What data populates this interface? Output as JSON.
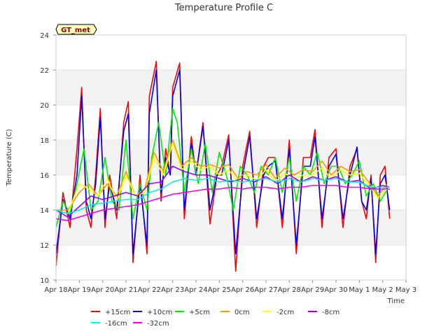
{
  "chart_data": {
    "type": "line",
    "title": "Temperature Profile C",
    "xlabel": "Time",
    "ylabel": "Temperature (C)",
    "ylim": [
      10,
      24
    ],
    "yticks": [
      10,
      12,
      14,
      16,
      18,
      20,
      22,
      24
    ],
    "xlim": [
      0,
      15
    ],
    "xticks": [
      {
        "pos": 0,
        "label": "Apr 18"
      },
      {
        "pos": 1,
        "label": "Apr 19"
      },
      {
        "pos": 2,
        "label": "Apr 20"
      },
      {
        "pos": 3,
        "label": "Apr 21"
      },
      {
        "pos": 4,
        "label": "Apr 22"
      },
      {
        "pos": 5,
        "label": "Apr 23"
      },
      {
        "pos": 6,
        "label": "Apr 24"
      },
      {
        "pos": 7,
        "label": "Apr 25"
      },
      {
        "pos": 8,
        "label": "Apr 26"
      },
      {
        "pos": 9,
        "label": "Apr 27"
      },
      {
        "pos": 10,
        "label": "Apr 28"
      },
      {
        "pos": 11,
        "label": "Apr 29"
      },
      {
        "pos": 12,
        "label": "Apr 30"
      },
      {
        "pos": 13,
        "label": "May 1"
      },
      {
        "pos": 14,
        "label": "May 2"
      },
      {
        "pos": 15,
        "label": "May 3"
      }
    ],
    "annotation": "GT_met",
    "grid": "horizontal-bands",
    "legend_position": "bottom",
    "series": [
      {
        "name": "+15cm",
        "color": "#ff0000",
        "x": [
          0,
          0.3,
          0.6,
          0.9,
          1.1,
          1.3,
          1.5,
          1.7,
          1.9,
          2.1,
          2.3,
          2.6,
          2.9,
          3.1,
          3.3,
          3.6,
          3.9,
          4.0,
          4.3,
          4.5,
          4.7,
          4.9,
          5.0,
          5.3,
          5.5,
          5.8,
          6.0,
          6.3,
          6.6,
          6.9,
          7.1,
          7.4,
          7.7,
          8.0,
          8.3,
          8.6,
          8.9,
          9.1,
          9.4,
          9.7,
          10.0,
          10.3,
          10.6,
          10.9,
          11.1,
          11.4,
          11.7,
          12.0,
          12.3,
          12.6,
          12.9,
          13.1,
          13.3,
          13.5,
          13.7,
          13.9,
          14.1,
          14.3
        ],
        "y": [
          10.8,
          15.0,
          13.0,
          17.5,
          21.0,
          14.0,
          13.0,
          16.0,
          19.8,
          13.0,
          16.0,
          13.5,
          19.0,
          20.2,
          11.0,
          16.0,
          11.5,
          20.5,
          22.5,
          14.5,
          17.5,
          16.0,
          21.0,
          22.4,
          13.5,
          18.2,
          16.0,
          19.0,
          13.2,
          16.0,
          16.5,
          18.3,
          10.5,
          16.5,
          18.5,
          13.0,
          16.5,
          17.0,
          17.0,
          13.0,
          18.0,
          11.5,
          17.0,
          17.0,
          18.6,
          13.0,
          17.0,
          17.5,
          13.0,
          16.5,
          17.5,
          14.5,
          13.5,
          16.0,
          11.0,
          16.0,
          16.5,
          13.5
        ]
      },
      {
        "name": "+10cm",
        "color": "#0000ff",
        "x": [
          0,
          0.3,
          0.6,
          0.9,
          1.1,
          1.3,
          1.5,
          1.7,
          1.9,
          2.1,
          2.3,
          2.6,
          2.9,
          3.1,
          3.3,
          3.6,
          3.9,
          4.0,
          4.3,
          4.5,
          4.7,
          4.9,
          5.0,
          5.3,
          5.5,
          5.8,
          6.0,
          6.3,
          6.6,
          6.9,
          7.1,
          7.4,
          7.7,
          8.0,
          8.3,
          8.6,
          8.9,
          9.1,
          9.4,
          9.7,
          10.0,
          10.3,
          10.6,
          10.9,
          11.1,
          11.4,
          11.7,
          12.0,
          12.3,
          12.6,
          12.9,
          13.1,
          13.3,
          13.5,
          13.7,
          13.9,
          14.1,
          14.3
        ],
        "y": [
          11.5,
          14.6,
          13.5,
          16.0,
          20.5,
          14.5,
          13.5,
          15.5,
          19.3,
          13.5,
          15.5,
          14.0,
          18.5,
          19.5,
          11.5,
          15.5,
          12.0,
          19.5,
          22.0,
          15.0,
          17.0,
          16.0,
          20.5,
          22.0,
          14.0,
          17.8,
          16.0,
          18.8,
          14.0,
          16.0,
          16.0,
          18.0,
          11.5,
          16.0,
          18.2,
          13.5,
          16.0,
          16.5,
          16.8,
          13.5,
          17.5,
          12.0,
          16.5,
          16.5,
          18.2,
          13.5,
          16.5,
          17.2,
          13.5,
          16.0,
          17.6,
          14.5,
          14.0,
          15.8,
          11.5,
          15.5,
          16.0,
          14.0
        ]
      },
      {
        "name": "+5cm",
        "color": "#00ee00",
        "x": [
          0,
          0.3,
          0.6,
          0.9,
          1.2,
          1.5,
          1.8,
          2.1,
          2.4,
          2.7,
          3.0,
          3.3,
          3.6,
          3.9,
          4.1,
          4.4,
          4.7,
          5.0,
          5.2,
          5.5,
          5.8,
          6.1,
          6.4,
          6.7,
          7.0,
          7.3,
          7.6,
          7.9,
          8.2,
          8.5,
          8.8,
          9.1,
          9.4,
          9.7,
          10.0,
          10.3,
          10.6,
          10.9,
          11.2,
          11.5,
          11.8,
          12.1,
          12.4,
          12.7,
          13.0,
          13.3,
          13.6,
          13.9,
          14.2
        ],
        "y": [
          13.0,
          14.5,
          13.8,
          15.5,
          17.5,
          14.0,
          14.5,
          17.0,
          14.5,
          14.0,
          18.0,
          13.5,
          15.5,
          14.0,
          17.0,
          19.0,
          16.0,
          19.8,
          19.0,
          15.0,
          17.5,
          15.5,
          17.8,
          15.0,
          17.3,
          16.0,
          14.0,
          16.5,
          16.0,
          15.0,
          16.5,
          16.0,
          17.0,
          15.0,
          17.0,
          14.5,
          16.5,
          16.0,
          17.3,
          15.5,
          16.5,
          16.5,
          15.5,
          16.0,
          16.8,
          14.8,
          15.5,
          14.5,
          15.2
        ]
      },
      {
        "name": "0cm",
        "color": "#ff9900",
        "x": [
          0,
          0.5,
          1.0,
          1.4,
          1.8,
          2.2,
          2.6,
          3.0,
          3.4,
          3.8,
          4.2,
          4.6,
          5.0,
          5.4,
          5.8,
          6.2,
          6.6,
          7.0,
          7.4,
          7.8,
          8.2,
          8.6,
          9.0,
          9.4,
          9.8,
          10.2,
          10.6,
          11.0,
          11.4,
          11.8,
          12.2,
          12.6,
          13.0,
          13.4,
          13.8,
          14.2
        ],
        "y": [
          14.0,
          14.0,
          15.0,
          15.5,
          14.8,
          15.5,
          14.8,
          16.2,
          14.8,
          15.2,
          17.3,
          16.2,
          18.0,
          16.5,
          17.0,
          16.5,
          16.6,
          16.4,
          16.6,
          15.8,
          16.2,
          16.0,
          16.6,
          15.8,
          16.4,
          16.0,
          16.3,
          16.2,
          16.8,
          16.0,
          16.5,
          16.2,
          16.3,
          15.6,
          14.8,
          15.5
        ]
      },
      {
        "name": "-2cm",
        "color": "#ffff00",
        "x": [
          0,
          0.5,
          1.0,
          1.4,
          1.8,
          2.2,
          2.6,
          3.0,
          3.4,
          3.8,
          4.2,
          4.6,
          5.0,
          5.4,
          5.8,
          6.2,
          6.6,
          7.0,
          7.4,
          7.8,
          8.2,
          8.6,
          9.0,
          9.4,
          9.8,
          10.2,
          10.6,
          11.0,
          11.4,
          11.8,
          12.2,
          12.6,
          13.0,
          13.4,
          13.8,
          14.2
        ],
        "y": [
          14.0,
          13.8,
          15.5,
          15.2,
          14.8,
          15.8,
          14.5,
          16.0,
          14.8,
          15.0,
          17.0,
          16.0,
          17.8,
          16.3,
          16.8,
          16.3,
          16.5,
          16.0,
          16.3,
          15.6,
          16.0,
          15.7,
          16.3,
          15.6,
          16.1,
          15.8,
          16.0,
          16.0,
          16.4,
          15.8,
          16.3,
          16.0,
          16.1,
          15.4,
          14.7,
          15.2
        ]
      },
      {
        "name": "-8cm",
        "color": "#9900ff",
        "x": [
          0,
          0.5,
          1.0,
          1.5,
          2.0,
          2.5,
          3.0,
          3.5,
          4.0,
          4.5,
          5.0,
          5.5,
          6.0,
          6.5,
          7.0,
          7.5,
          8.0,
          8.5,
          9.0,
          9.5,
          10.0,
          10.5,
          11.0,
          11.5,
          12.0,
          12.5,
          13.0,
          13.5,
          14.0,
          14.3
        ],
        "y": [
          14.0,
          13.6,
          14.2,
          14.8,
          14.6,
          14.8,
          15.0,
          14.8,
          15.5,
          15.6,
          16.5,
          16.2,
          16.0,
          16.0,
          15.8,
          15.6,
          15.8,
          15.6,
          15.9,
          15.5,
          16.0,
          15.6,
          15.9,
          15.7,
          15.9,
          15.6,
          15.7,
          15.2,
          15.4,
          15.3
        ]
      },
      {
        "name": "-16cm",
        "color": "#00eeee",
        "x": [
          0,
          0.5,
          1.0,
          1.5,
          2.0,
          2.5,
          3.0,
          3.5,
          4.0,
          4.5,
          5.0,
          5.5,
          6.0,
          6.5,
          7.0,
          7.5,
          8.0,
          8.5,
          9.0,
          9.5,
          10.0,
          10.5,
          11.0,
          11.5,
          12.0,
          12.5,
          13.0,
          13.5,
          14.0,
          14.3
        ],
        "y": [
          14.0,
          13.8,
          14.0,
          14.3,
          14.4,
          14.5,
          14.6,
          14.6,
          15.0,
          15.2,
          15.6,
          15.8,
          15.7,
          15.8,
          15.6,
          15.7,
          15.6,
          15.7,
          15.8,
          15.6,
          15.8,
          15.6,
          15.8,
          15.7,
          15.8,
          15.6,
          15.6,
          15.3,
          15.3,
          15.3
        ]
      },
      {
        "name": "-32cm",
        "color": "#ee00ee",
        "x": [
          0,
          0.5,
          1.0,
          1.5,
          2.0,
          2.5,
          3.0,
          3.5,
          4.0,
          4.5,
          5.0,
          5.5,
          6.0,
          6.5,
          7.0,
          7.5,
          8.0,
          8.5,
          9.0,
          9.5,
          10.0,
          10.5,
          11.0,
          11.5,
          12.0,
          12.5,
          13.0,
          13.5,
          14.0,
          14.3
        ],
        "y": [
          13.5,
          13.4,
          13.6,
          13.8,
          14.0,
          14.1,
          14.2,
          14.3,
          14.5,
          14.7,
          14.9,
          15.0,
          15.1,
          15.2,
          15.2,
          15.3,
          15.2,
          15.3,
          15.3,
          15.2,
          15.3,
          15.3,
          15.4,
          15.4,
          15.4,
          15.3,
          15.3,
          15.2,
          15.2,
          15.2
        ]
      }
    ]
  }
}
